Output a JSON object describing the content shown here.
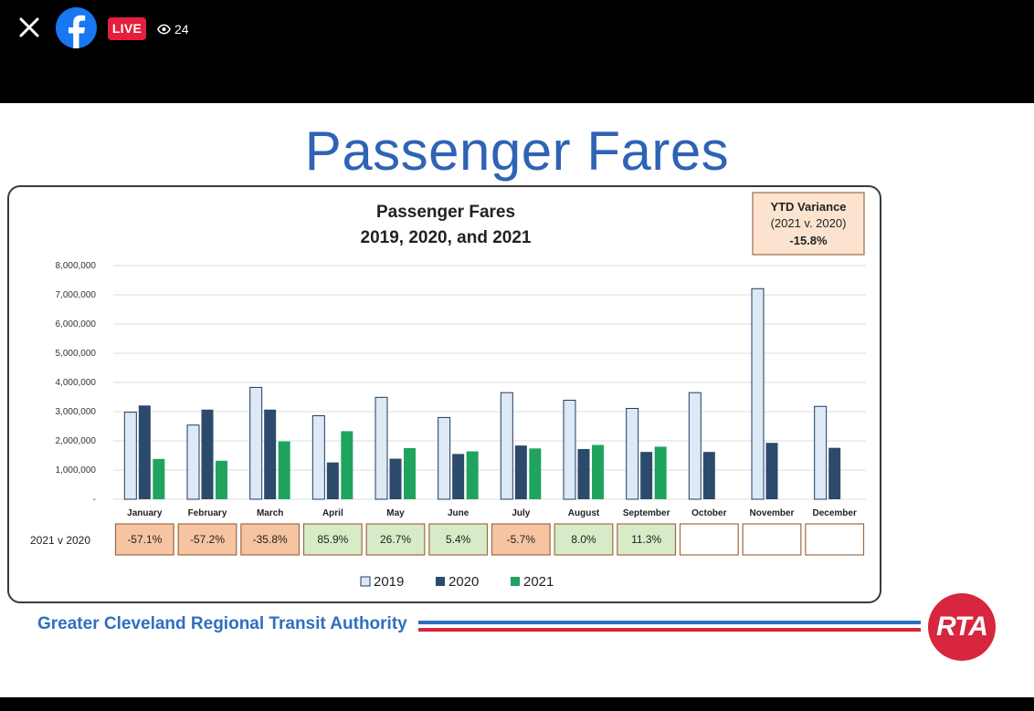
{
  "header": {
    "live_label": "LIVE",
    "viewer_count": "24",
    "icons": [
      "close-icon",
      "facebook-logo-icon",
      "eye-icon"
    ]
  },
  "slide": {
    "title": "Passenger Fares",
    "footer_text": "Greater Cleveland Regional Transit Authority",
    "logo_text": "RTA"
  },
  "chart_data": {
    "type": "bar",
    "title": "Passenger Fares",
    "subtitle": "2019, 2020, and 2021",
    "categories": [
      "January",
      "February",
      "March",
      "April",
      "May",
      "June",
      "July",
      "August",
      "September",
      "October",
      "November",
      "December"
    ],
    "series": [
      {
        "name": "2019",
        "color": "#dde9f5",
        "values": [
          2980000,
          2540000,
          3830000,
          2860000,
          3490000,
          2800000,
          3650000,
          3390000,
          3110000,
          3650000,
          7210000,
          3180000
        ]
      },
      {
        "name": "2020",
        "color": "#2c4a6b",
        "values": [
          3210000,
          3070000,
          3070000,
          1260000,
          1390000,
          1550000,
          1840000,
          1720000,
          1620000,
          1620000,
          1930000,
          1760000
        ]
      },
      {
        "name": "2021",
        "color": "#1fa35f",
        "values": [
          1380000,
          1320000,
          1980000,
          2330000,
          1750000,
          1640000,
          1740000,
          1860000,
          1800000,
          null,
          null,
          null
        ]
      }
    ],
    "ylim": [
      0,
      8000000
    ],
    "yticks": [
      "-",
      "1,000,000",
      "2,000,000",
      "3,000,000",
      "4,000,000",
      "5,000,000",
      "6,000,000",
      "7,000,000",
      "8,000,000"
    ],
    "grid": true,
    "legend": "bottom",
    "variance_row": {
      "label": "2021 v 2020",
      "values": [
        "-57.1%",
        "-57.2%",
        "-35.8%",
        "85.9%",
        "26.7%",
        "5.4%",
        "-5.7%",
        "8.0%",
        "11.3%",
        "",
        "",
        ""
      ],
      "negative_color": "#f6c4a0",
      "positive_color": "#d7ebc6"
    },
    "ytd_box": {
      "title": "YTD Variance",
      "subtitle": "(2021 v. 2020)",
      "value": "-15.8%"
    }
  }
}
